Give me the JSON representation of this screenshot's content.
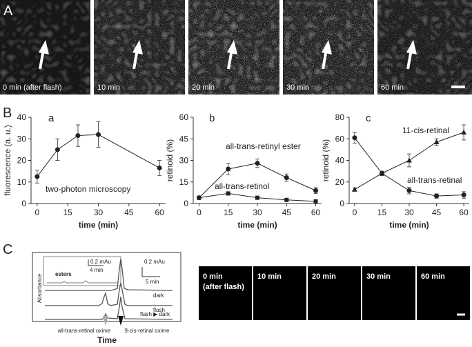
{
  "panel_labels": [
    "A",
    "B",
    "C"
  ],
  "micrographs": {
    "labels": [
      [
        "0 min (after flash)"
      ],
      [
        "10 min"
      ],
      [
        "20 min"
      ],
      [
        "30 min"
      ],
      [
        "60 min"
      ]
    ]
  },
  "chart_data": [
    {
      "type": "line",
      "panel_label": "a",
      "xlabel": "time (min)",
      "ylabel": "fluorescence (a. u.)",
      "xlim": [
        -3,
        63
      ],
      "xticks": [
        0,
        15,
        30,
        45,
        60
      ],
      "ylim": [
        0,
        40
      ],
      "yticks": [
        0,
        10,
        20,
        30,
        40
      ],
      "x": [
        0,
        10,
        20,
        30,
        60
      ],
      "annotations": [
        "two-photon microscopy"
      ],
      "series": [
        {
          "color": "#222222",
          "marker": "circle",
          "values": [
            12.5,
            25,
            31.5,
            32,
            16.5
          ],
          "errors": [
            3,
            5,
            5,
            6,
            3.5
          ]
        }
      ]
    },
    {
      "type": "line",
      "panel_label": "b",
      "xlabel": "time (min)",
      "ylabel": "retinoid (%)",
      "xlim": [
        -3,
        63
      ],
      "xticks": [
        0,
        15,
        30,
        45,
        60
      ],
      "ylim": [
        0,
        60
      ],
      "yticks": [
        0,
        15,
        30,
        45,
        60
      ],
      "x": [
        0,
        15,
        30,
        45,
        60
      ],
      "series": [
        {
          "name": "all-trans-retinyl ester",
          "color": "#222222",
          "marker": "circle",
          "values": [
            4,
            24,
            28,
            18,
            9
          ],
          "errors": [
            1,
            4,
            3,
            2.5,
            2
          ]
        },
        {
          "name": "all-trans-retinol",
          "color": "#222222",
          "marker": "square",
          "values": [
            4,
            7,
            4,
            2.5,
            1.5
          ],
          "errors": [
            0.5,
            1,
            0.5,
            0.5,
            0.5
          ]
        }
      ]
    },
    {
      "type": "line",
      "panel_label": "c",
      "xlabel": "time (min)",
      "ylabel": "retinoid (%)",
      "xlim": [
        -3,
        63
      ],
      "xticks": [
        0,
        15,
        30,
        45,
        60
      ],
      "ylim": [
        0,
        80
      ],
      "yticks": [
        0,
        20,
        40,
        60,
        80
      ],
      "x": [
        0,
        15,
        30,
        45,
        60
      ],
      "series": [
        {
          "name": "11-cis-retinal",
          "color": "#222222",
          "marker": "triangle",
          "values": [
            13,
            28,
            40,
            57,
            66
          ],
          "errors": [
            1.5,
            2,
            6,
            3,
            7
          ]
        },
        {
          "name": "all-trans-retinal",
          "color": "#222222",
          "marker": "circle",
          "values": [
            61,
            28,
            12,
            7,
            8
          ],
          "errors": [
            5,
            2,
            3,
            2,
            3
          ]
        }
      ]
    }
  ],
  "chromatogram": {
    "y_label": "Absorbance",
    "x_label": "Time",
    "inset_scale_y": "0.2 mAu",
    "inset_scale_x": "4 min",
    "inset_label": "esters",
    "scale_y": "0.2 mAu",
    "scale_x": "5 min",
    "traces": [
      "dark",
      "flash",
      "flash ▶ dark"
    ],
    "peaks": [
      "all-trans-retinal oxime",
      "9-cis-retinal oxime"
    ]
  },
  "dark_images": {
    "labels": [
      [
        "0 min",
        "(after flash)"
      ],
      [
        "10 min"
      ],
      [
        "20 min"
      ],
      [
        "30 min"
      ],
      [
        "60 min"
      ]
    ]
  }
}
